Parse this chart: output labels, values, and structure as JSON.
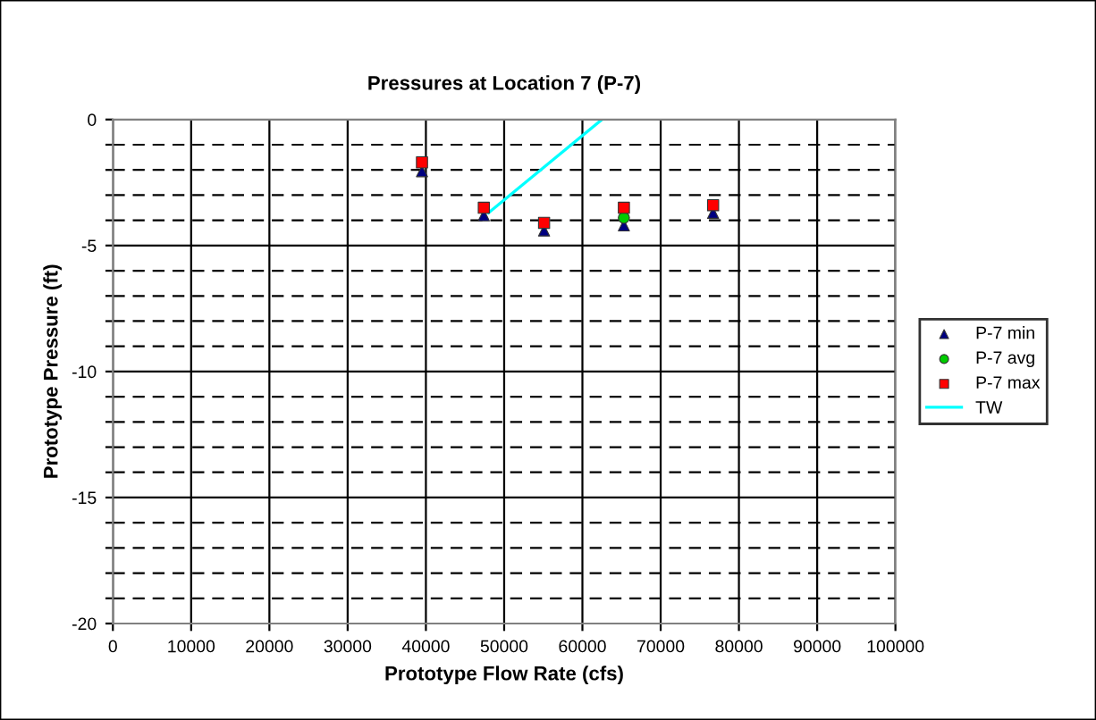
{
  "chart_data": {
    "type": "scatter",
    "title": "Pressures at Location 7 (P-7)",
    "xlabel": "Prototype Flow Rate (cfs)",
    "ylabel": "Prototype Pressure (ft)",
    "x": [
      39500,
      47400,
      55100,
      65300,
      76700
    ],
    "series": [
      {
        "name": "P-7 min",
        "color": "#000080",
        "marker": "triangle",
        "values": [
          -2.05,
          -3.8,
          -4.4,
          -4.2,
          -3.7
        ]
      },
      {
        "name": "P-7 avg",
        "color": "#00cc00",
        "marker": "circle",
        "values": [
          null,
          null,
          null,
          -3.9,
          null
        ]
      },
      {
        "name": "P-7 max",
        "color": "#ff0000",
        "marker": "square",
        "values": [
          -1.7,
          -3.5,
          -4.1,
          -3.5,
          -3.4
        ]
      },
      {
        "name": "TW",
        "type": "line",
        "color": "#00ffff",
        "marker": "none",
        "x": [
          48000,
          62500
        ],
        "values": [
          -3.7,
          0
        ]
      }
    ],
    "xlim": [
      0,
      100000
    ],
    "xticks": [
      0,
      10000,
      20000,
      30000,
      40000,
      50000,
      60000,
      70000,
      80000,
      90000,
      100000
    ],
    "ylim": [
      -20,
      0
    ],
    "yticks": [
      -20,
      {
        "value": -19,
        "label": null
      },
      {
        "value": -18,
        "label": null
      },
      {
        "value": -17,
        "label": null
      },
      {
        "value": -16,
        "label": null
      },
      -15,
      {
        "value": -14,
        "label": null
      },
      {
        "value": -13,
        "label": null
      },
      {
        "value": -12,
        "label": null
      },
      {
        "value": -11,
        "label": null
      },
      -10,
      {
        "value": -9,
        "label": null
      },
      {
        "value": -8,
        "label": null
      },
      {
        "value": -7,
        "label": null
      },
      {
        "value": -6,
        "label": null
      },
      -5,
      {
        "value": -4,
        "label": null
      },
      {
        "value": -3,
        "label": null
      },
      {
        "value": -2,
        "label": null
      },
      {
        "value": -1,
        "label": null
      },
      0
    ],
    "grid": true,
    "legend": "right"
  }
}
